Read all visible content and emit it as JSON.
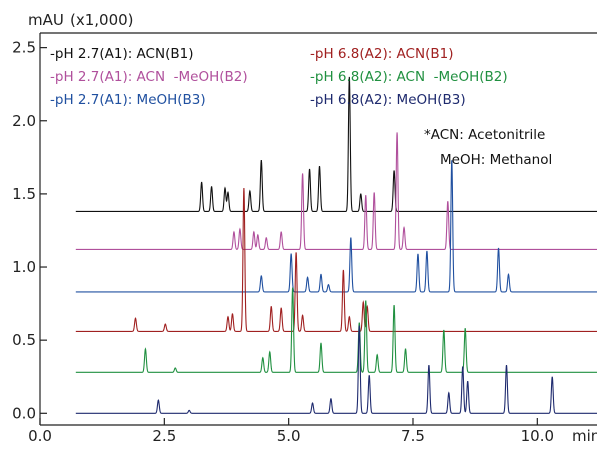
{
  "chart_data": {
    "type": "line",
    "x_unit": "min",
    "y_unit": "mAU",
    "y_multiplier": "(x1,000)",
    "xlim": [
      0.0,
      11.2
    ],
    "ylim": [
      -0.08,
      2.6
    ],
    "x_ticks": [
      {
        "value": 0.0,
        "label": "0.0"
      },
      {
        "value": 2.5,
        "label": "2.5"
      },
      {
        "value": 5.0,
        "label": "5.0"
      },
      {
        "value": 7.5,
        "label": "7.5"
      },
      {
        "value": 10.0,
        "label": "10.0"
      }
    ],
    "y_ticks": [
      {
        "value": 0.0,
        "label": "0.0"
      },
      {
        "value": 0.5,
        "label": "0.5"
      },
      {
        "value": 1.0,
        "label": "1.0"
      },
      {
        "value": 1.5,
        "label": "1.5"
      },
      {
        "value": 2.0,
        "label": "2.0"
      },
      {
        "value": 2.5,
        "label": "2.5"
      }
    ],
    "grid": false,
    "legend_position": "top-left",
    "annotations": [
      "*ACN: Acetonitrile",
      "MeOH: Methanol"
    ],
    "series": [
      {
        "name": "-pH 2.7(A1): ACN(B1)",
        "color": "#111111",
        "baseline": 1.38,
        "peaks": [
          [
            3.25,
            0.2
          ],
          [
            3.45,
            0.17
          ],
          [
            3.72,
            0.16
          ],
          [
            3.78,
            0.13
          ],
          [
            4.22,
            0.14
          ],
          [
            4.45,
            0.35
          ],
          [
            5.42,
            0.29
          ],
          [
            5.62,
            0.31
          ],
          [
            6.22,
            0.92
          ],
          [
            6.45,
            0.12
          ],
          [
            7.12,
            0.28
          ]
        ]
      },
      {
        "name": "-pH 2.7(A1): ACN  -MeOH(B2)",
        "color": "#b0509c",
        "baseline": 1.12,
        "peaks": [
          [
            3.9,
            0.12
          ],
          [
            4.02,
            0.14
          ],
          [
            4.3,
            0.12
          ],
          [
            4.38,
            0.1
          ],
          [
            4.55,
            0.08
          ],
          [
            4.85,
            0.12
          ],
          [
            5.28,
            0.52
          ],
          [
            6.55,
            0.37
          ],
          [
            6.72,
            0.39
          ],
          [
            7.18,
            0.8
          ],
          [
            7.32,
            0.15
          ],
          [
            8.2,
            0.33
          ]
        ]
      },
      {
        "name": "-pH 2.7(A1): MeOH(B3)",
        "color": "#2050a0",
        "baseline": 0.83,
        "peaks": [
          [
            4.45,
            0.11
          ],
          [
            5.05,
            0.26
          ],
          [
            5.38,
            0.1
          ],
          [
            5.65,
            0.12
          ],
          [
            5.8,
            0.05
          ],
          [
            6.25,
            0.37
          ],
          [
            7.6,
            0.26
          ],
          [
            7.78,
            0.28
          ],
          [
            8.28,
            0.9
          ],
          [
            9.22,
            0.3
          ],
          [
            9.42,
            0.12
          ]
        ]
      },
      {
        "name": "-pH 6.8(A2): ACN(B1)",
        "color": "#a02020",
        "baseline": 0.56,
        "peaks": [
          [
            1.92,
            0.09
          ],
          [
            2.52,
            0.05
          ],
          [
            3.78,
            0.1
          ],
          [
            3.87,
            0.12
          ],
          [
            4.1,
            0.98
          ],
          [
            4.65,
            0.17
          ],
          [
            4.85,
            0.16
          ],
          [
            5.15,
            0.54
          ],
          [
            5.28,
            0.11
          ],
          [
            6.1,
            0.42
          ],
          [
            6.22,
            0.1
          ],
          [
            6.5,
            0.2
          ],
          [
            6.58,
            0.17
          ]
        ]
      },
      {
        "name": "-pH 6.8(A2): ACN  -MeOH(B2)",
        "color": "#209040",
        "baseline": 0.28,
        "peaks": [
          [
            2.12,
            0.16
          ],
          [
            2.72,
            0.03
          ],
          [
            4.48,
            0.1
          ],
          [
            4.62,
            0.14
          ],
          [
            5.08,
            0.58
          ],
          [
            5.65,
            0.2
          ],
          [
            6.42,
            0.34
          ],
          [
            6.55,
            0.49
          ],
          [
            6.78,
            0.12
          ],
          [
            7.12,
            0.46
          ],
          [
            7.35,
            0.16
          ],
          [
            8.12,
            0.29
          ],
          [
            8.55,
            0.3
          ]
        ]
      },
      {
        "name": "-pH 6.8(A2): MeOH(B3)",
        "color": "#1e2a6e",
        "baseline": 0.0,
        "peaks": [
          [
            2.38,
            0.09
          ],
          [
            3.0,
            0.02
          ],
          [
            5.48,
            0.07
          ],
          [
            5.85,
            0.1
          ],
          [
            6.42,
            0.6
          ],
          [
            6.62,
            0.26
          ],
          [
            7.82,
            0.33
          ],
          [
            8.22,
            0.14
          ],
          [
            8.5,
            0.32
          ],
          [
            8.6,
            0.22
          ],
          [
            9.38,
            0.33
          ],
          [
            10.3,
            0.25
          ]
        ]
      }
    ]
  }
}
